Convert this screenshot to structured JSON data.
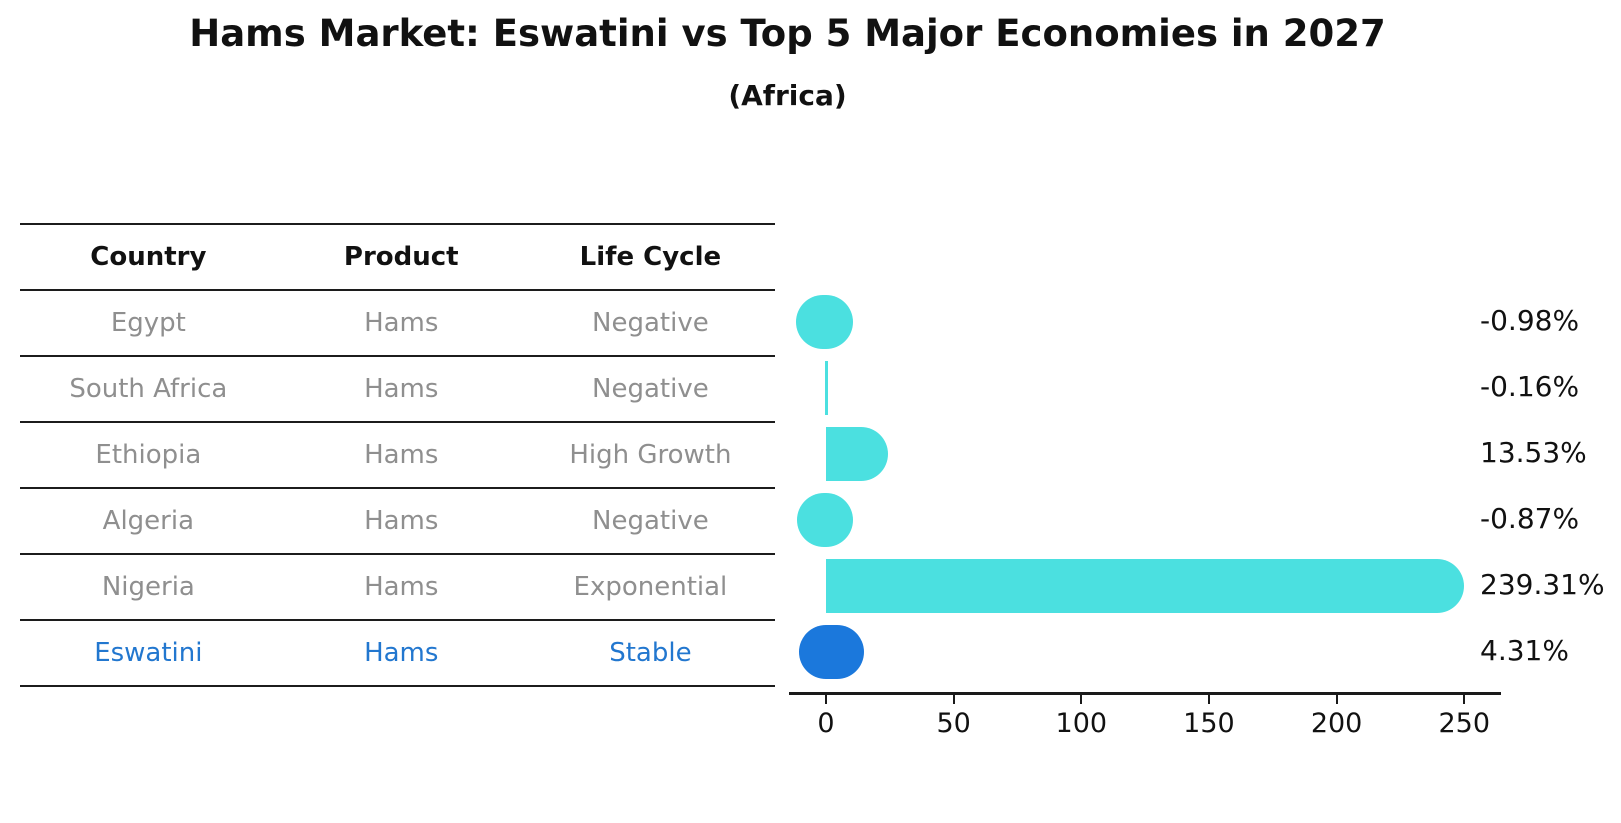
{
  "title": "Hams Market: Eswatini vs Top 5 Major Economies in 2027",
  "subtitle": "(Africa)",
  "table": {
    "headers": [
      "Country",
      "Product",
      "Life Cycle"
    ],
    "rows": [
      {
        "country": "Egypt",
        "product": "Hams",
        "life_cycle": "Negative",
        "highlight": false
      },
      {
        "country": "South Africa",
        "product": "Hams",
        "life_cycle": "Negative",
        "highlight": false
      },
      {
        "country": "Ethiopia",
        "product": "Hams",
        "life_cycle": "High Growth",
        "highlight": false
      },
      {
        "country": "Algeria",
        "product": "Hams",
        "life_cycle": "Negative",
        "highlight": false
      },
      {
        "country": "Nigeria",
        "product": "Hams",
        "life_cycle": "Exponential",
        "highlight": false
      },
      {
        "country": "Eswatini",
        "product": "Hams",
        "life_cycle": "Stable",
        "highlight": true
      }
    ]
  },
  "chart_data": {
    "type": "bar",
    "orientation": "horizontal",
    "title": "Hams Market: Eswatini vs Top 5 Major Economies in 2027",
    "subtitle": "(Africa)",
    "categories": [
      "Egypt",
      "South Africa",
      "Ethiopia",
      "Algeria",
      "Nigeria",
      "Eswatini"
    ],
    "values": [
      -0.98,
      -0.16,
      13.53,
      -0.87,
      239.31,
      4.31
    ],
    "value_labels": [
      "-0.98%",
      "-0.16%",
      "13.53%",
      "-0.87%",
      "239.31%",
      "4.31%"
    ],
    "xticks": [
      0,
      50,
      100,
      150,
      200,
      250
    ],
    "xlim": [
      -14,
      264
    ],
    "grid": false,
    "legend": false,
    "marker_styles": [
      "circle",
      "line",
      "bar",
      "circle",
      "bar",
      "circle"
    ],
    "highlight_index": 5
  },
  "colors": {
    "bar_default": "#4be0e0",
    "bar_highlight": "#1b78dc",
    "row_text": "#8f8f8f",
    "highlight_text": "#2277cf",
    "heading_text": "#111111",
    "line": "#1c1c1c"
  }
}
